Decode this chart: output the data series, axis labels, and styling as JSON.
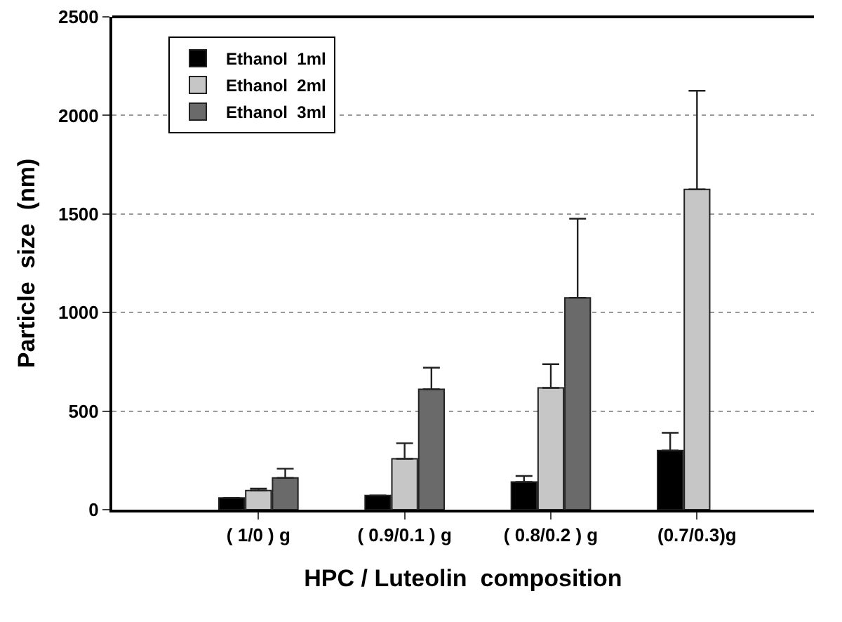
{
  "chart_data": {
    "type": "bar",
    "xlabel": "HPC / Luteolin  composition",
    "ylabel": "Particle  size  (nm)",
    "categories": [
      "( 1/0 ) g",
      "( 0.9/0.1 ) g",
      "( 0.8/0.2 ) g",
      "(0.7/0.3)g"
    ],
    "series": [
      {
        "name": "Ethanol  1ml",
        "color": "#000000",
        "values": [
          60,
          72,
          141,
          300
        ],
        "errors": [
          null,
          null,
          [
            141,
            171
          ],
          [
            300,
            390
          ]
        ]
      },
      {
        "name": "Ethanol  2ml",
        "color": "#c6c6c6",
        "values": [
          97,
          258,
          618,
          1625
        ],
        "errors": [
          [
            97,
            107
          ],
          [
            258,
            337
          ],
          [
            618,
            738
          ],
          [
            1625,
            2125
          ]
        ]
      },
      {
        "name": "Ethanol  3ml",
        "color": "#6a6a6a",
        "values": [
          161,
          611,
          1075,
          null
        ],
        "errors": [
          [
            161,
            208
          ],
          [
            611,
            720
          ],
          [
            1075,
            1476
          ],
          null
        ]
      }
    ],
    "ylim": [
      0,
      2500
    ],
    "yticks": [
      0,
      500,
      1000,
      1500,
      2000,
      2500
    ],
    "grid": "y",
    "legend": "top left"
  }
}
